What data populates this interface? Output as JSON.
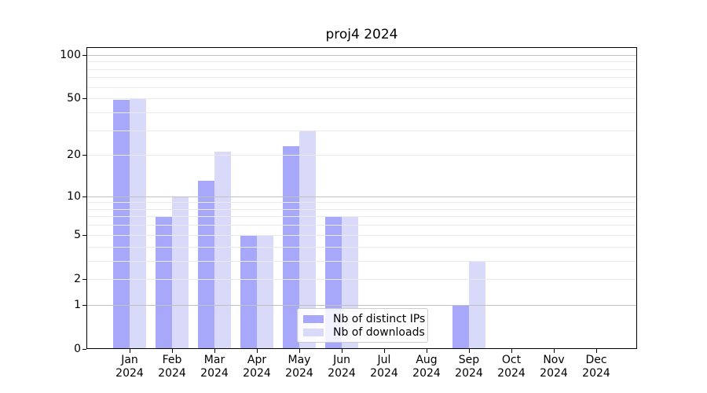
{
  "title": "proj4 2024",
  "colors": {
    "distinct_ips": "#a8a8fa",
    "downloads": "#d9d9fa",
    "grid_major": "#c0c0c0",
    "grid_minor": "#eaeaea",
    "axis": "#000000",
    "legend_border": "#cccccc"
  },
  "chart_data": {
    "type": "bar",
    "title": "proj4 2024",
    "categories": [
      "Jan 2024",
      "Feb 2024",
      "Mar 2024",
      "Apr 2024",
      "May 2024",
      "Jun 2024",
      "Jul 2024",
      "Aug 2024",
      "Sep 2024",
      "Oct 2024",
      "Nov 2024",
      "Dec 2024"
    ],
    "series": [
      {
        "name": "Nb of distinct IPs",
        "color": "#a8a8fa",
        "values": [
          49,
          7,
          13,
          5,
          23,
          7,
          0,
          0,
          1,
          0,
          0,
          0
        ]
      },
      {
        "name": "Nb of downloads",
        "color": "#d9d9fa",
        "values": [
          50,
          10,
          21,
          5,
          30,
          7,
          0,
          0,
          3,
          0,
          0,
          0
        ]
      }
    ],
    "yscale": "log1p",
    "ylim": [
      0,
      113
    ],
    "y_major_ticks": [
      0,
      1,
      2,
      5,
      10,
      20,
      50,
      100
    ],
    "grid_major_values": [
      1,
      10,
      100
    ],
    "grid_minor_values": [
      2,
      3,
      4,
      5,
      6,
      7,
      8,
      9,
      20,
      30,
      40,
      50,
      60,
      70,
      80,
      90
    ],
    "grid": "both",
    "legend_position": "lower center",
    "xlabel": "",
    "ylabel": ""
  }
}
